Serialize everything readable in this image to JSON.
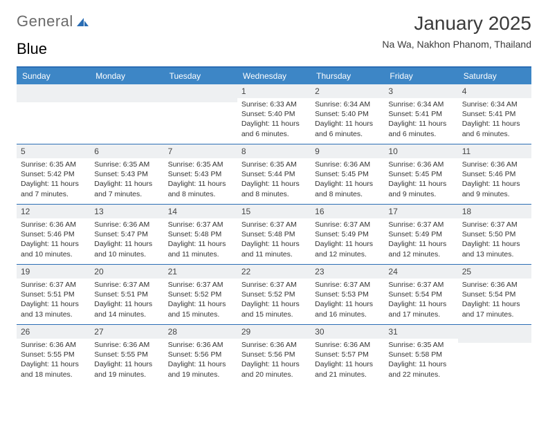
{
  "logo": {
    "part1": "General",
    "part2": "Blue"
  },
  "title": "January 2025",
  "location": "Na Wa, Nakhon Phanom, Thailand",
  "colors": {
    "header_bg": "#3d86c6",
    "border": "#2a6db4",
    "daynum_bg": "#eef0f2",
    "text": "#333333",
    "title_text": "#3a3a3a"
  },
  "layout": {
    "cols": 7,
    "rows": 5,
    "first_weekday": "Sunday",
    "leading_blanks": 3
  },
  "weekdays": [
    "Sunday",
    "Monday",
    "Tuesday",
    "Wednesday",
    "Thursday",
    "Friday",
    "Saturday"
  ],
  "days": [
    {
      "n": 1,
      "sunrise": "6:33 AM",
      "sunset": "5:40 PM",
      "daylight": "11 hours and 6 minutes."
    },
    {
      "n": 2,
      "sunrise": "6:34 AM",
      "sunset": "5:40 PM",
      "daylight": "11 hours and 6 minutes."
    },
    {
      "n": 3,
      "sunrise": "6:34 AM",
      "sunset": "5:41 PM",
      "daylight": "11 hours and 6 minutes."
    },
    {
      "n": 4,
      "sunrise": "6:34 AM",
      "sunset": "5:41 PM",
      "daylight": "11 hours and 6 minutes."
    },
    {
      "n": 5,
      "sunrise": "6:35 AM",
      "sunset": "5:42 PM",
      "daylight": "11 hours and 7 minutes."
    },
    {
      "n": 6,
      "sunrise": "6:35 AM",
      "sunset": "5:43 PM",
      "daylight": "11 hours and 7 minutes."
    },
    {
      "n": 7,
      "sunrise": "6:35 AM",
      "sunset": "5:43 PM",
      "daylight": "11 hours and 8 minutes."
    },
    {
      "n": 8,
      "sunrise": "6:35 AM",
      "sunset": "5:44 PM",
      "daylight": "11 hours and 8 minutes."
    },
    {
      "n": 9,
      "sunrise": "6:36 AM",
      "sunset": "5:45 PM",
      "daylight": "11 hours and 8 minutes."
    },
    {
      "n": 10,
      "sunrise": "6:36 AM",
      "sunset": "5:45 PM",
      "daylight": "11 hours and 9 minutes."
    },
    {
      "n": 11,
      "sunrise": "6:36 AM",
      "sunset": "5:46 PM",
      "daylight": "11 hours and 9 minutes."
    },
    {
      "n": 12,
      "sunrise": "6:36 AM",
      "sunset": "5:46 PM",
      "daylight": "11 hours and 10 minutes."
    },
    {
      "n": 13,
      "sunrise": "6:36 AM",
      "sunset": "5:47 PM",
      "daylight": "11 hours and 10 minutes."
    },
    {
      "n": 14,
      "sunrise": "6:37 AM",
      "sunset": "5:48 PM",
      "daylight": "11 hours and 11 minutes."
    },
    {
      "n": 15,
      "sunrise": "6:37 AM",
      "sunset": "5:48 PM",
      "daylight": "11 hours and 11 minutes."
    },
    {
      "n": 16,
      "sunrise": "6:37 AM",
      "sunset": "5:49 PM",
      "daylight": "11 hours and 12 minutes."
    },
    {
      "n": 17,
      "sunrise": "6:37 AM",
      "sunset": "5:49 PM",
      "daylight": "11 hours and 12 minutes."
    },
    {
      "n": 18,
      "sunrise": "6:37 AM",
      "sunset": "5:50 PM",
      "daylight": "11 hours and 13 minutes."
    },
    {
      "n": 19,
      "sunrise": "6:37 AM",
      "sunset": "5:51 PM",
      "daylight": "11 hours and 13 minutes."
    },
    {
      "n": 20,
      "sunrise": "6:37 AM",
      "sunset": "5:51 PM",
      "daylight": "11 hours and 14 minutes."
    },
    {
      "n": 21,
      "sunrise": "6:37 AM",
      "sunset": "5:52 PM",
      "daylight": "11 hours and 15 minutes."
    },
    {
      "n": 22,
      "sunrise": "6:37 AM",
      "sunset": "5:52 PM",
      "daylight": "11 hours and 15 minutes."
    },
    {
      "n": 23,
      "sunrise": "6:37 AM",
      "sunset": "5:53 PM",
      "daylight": "11 hours and 16 minutes."
    },
    {
      "n": 24,
      "sunrise": "6:37 AM",
      "sunset": "5:54 PM",
      "daylight": "11 hours and 17 minutes."
    },
    {
      "n": 25,
      "sunrise": "6:36 AM",
      "sunset": "5:54 PM",
      "daylight": "11 hours and 17 minutes."
    },
    {
      "n": 26,
      "sunrise": "6:36 AM",
      "sunset": "5:55 PM",
      "daylight": "11 hours and 18 minutes."
    },
    {
      "n": 27,
      "sunrise": "6:36 AM",
      "sunset": "5:55 PM",
      "daylight": "11 hours and 19 minutes."
    },
    {
      "n": 28,
      "sunrise": "6:36 AM",
      "sunset": "5:56 PM",
      "daylight": "11 hours and 19 minutes."
    },
    {
      "n": 29,
      "sunrise": "6:36 AM",
      "sunset": "5:56 PM",
      "daylight": "11 hours and 20 minutes."
    },
    {
      "n": 30,
      "sunrise": "6:36 AM",
      "sunset": "5:57 PM",
      "daylight": "11 hours and 21 minutes."
    },
    {
      "n": 31,
      "sunrise": "6:35 AM",
      "sunset": "5:58 PM",
      "daylight": "11 hours and 22 minutes."
    }
  ],
  "labels": {
    "sunrise": "Sunrise:",
    "sunset": "Sunset:",
    "daylight": "Daylight:"
  }
}
